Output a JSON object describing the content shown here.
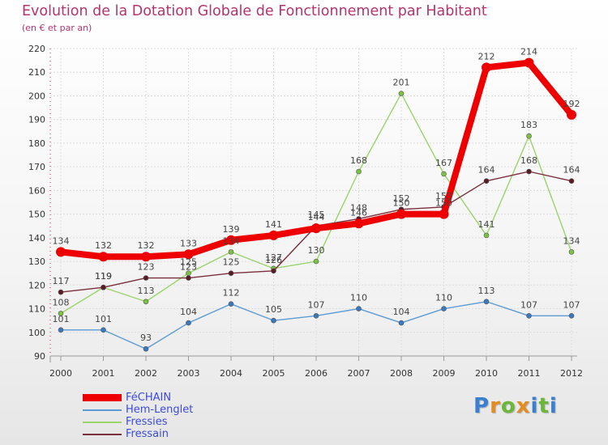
{
  "chart_data": {
    "type": "line",
    "title": "Evolution de la Dotation Globale de Fonctionnement par Habitant",
    "subtitle": "(en € et par an)",
    "xlabel": "",
    "ylabel": "",
    "ylim": [
      90,
      220
    ],
    "yticks": [
      90,
      100,
      110,
      120,
      130,
      140,
      150,
      160,
      170,
      180,
      190,
      200,
      210,
      220
    ],
    "categories": [
      "2000",
      "2001",
      "2002",
      "2003",
      "2004",
      "2005",
      "2006",
      "2007",
      "2008",
      "2009",
      "2010",
      "2011",
      "2012"
    ],
    "series": [
      {
        "name": "Hem-Lenglet",
        "color": "#5b9bd5",
        "marker": "#3a78c0",
        "values": [
          101,
          101,
          93,
          104,
          112,
          105,
          107,
          110,
          104,
          110,
          113,
          107,
          107
        ]
      },
      {
        "name": "Fressies",
        "color": "#9bd46b",
        "marker": "#7cc242",
        "values": [
          108,
          119,
          113,
          125,
          134,
          127,
          130,
          168,
          201,
          167,
          141,
          183,
          134
        ]
      },
      {
        "name": "Fressain",
        "color": "#7a2f3d",
        "marker": "#5a1a26",
        "values": [
          117,
          119,
          123,
          123,
          125,
          126,
          145,
          148,
          152,
          153,
          164,
          168,
          164
        ]
      },
      {
        "name": "FéCHAIN",
        "color": "#ee0000",
        "marker": "#ee0000",
        "values": [
          134,
          132,
          132,
          133,
          139,
          141,
          144,
          146,
          150,
          150,
          212,
          214,
          192
        ]
      }
    ],
    "legend_position": "bottom-left"
  },
  "legend": [
    {
      "name": "FéCHAIN",
      "color": "#ee0000"
    },
    {
      "name": "Hem-Lenglet",
      "color": "#5b9bd5"
    },
    {
      "name": "Fressies",
      "color": "#9bd46b"
    },
    {
      "name": "Fressain",
      "color": "#7a2f3d"
    }
  ],
  "logo": {
    "p": "P",
    "r": "r",
    "o": "o",
    "x": "x",
    "i": "i",
    "t": "t",
    "i2": "i"
  }
}
